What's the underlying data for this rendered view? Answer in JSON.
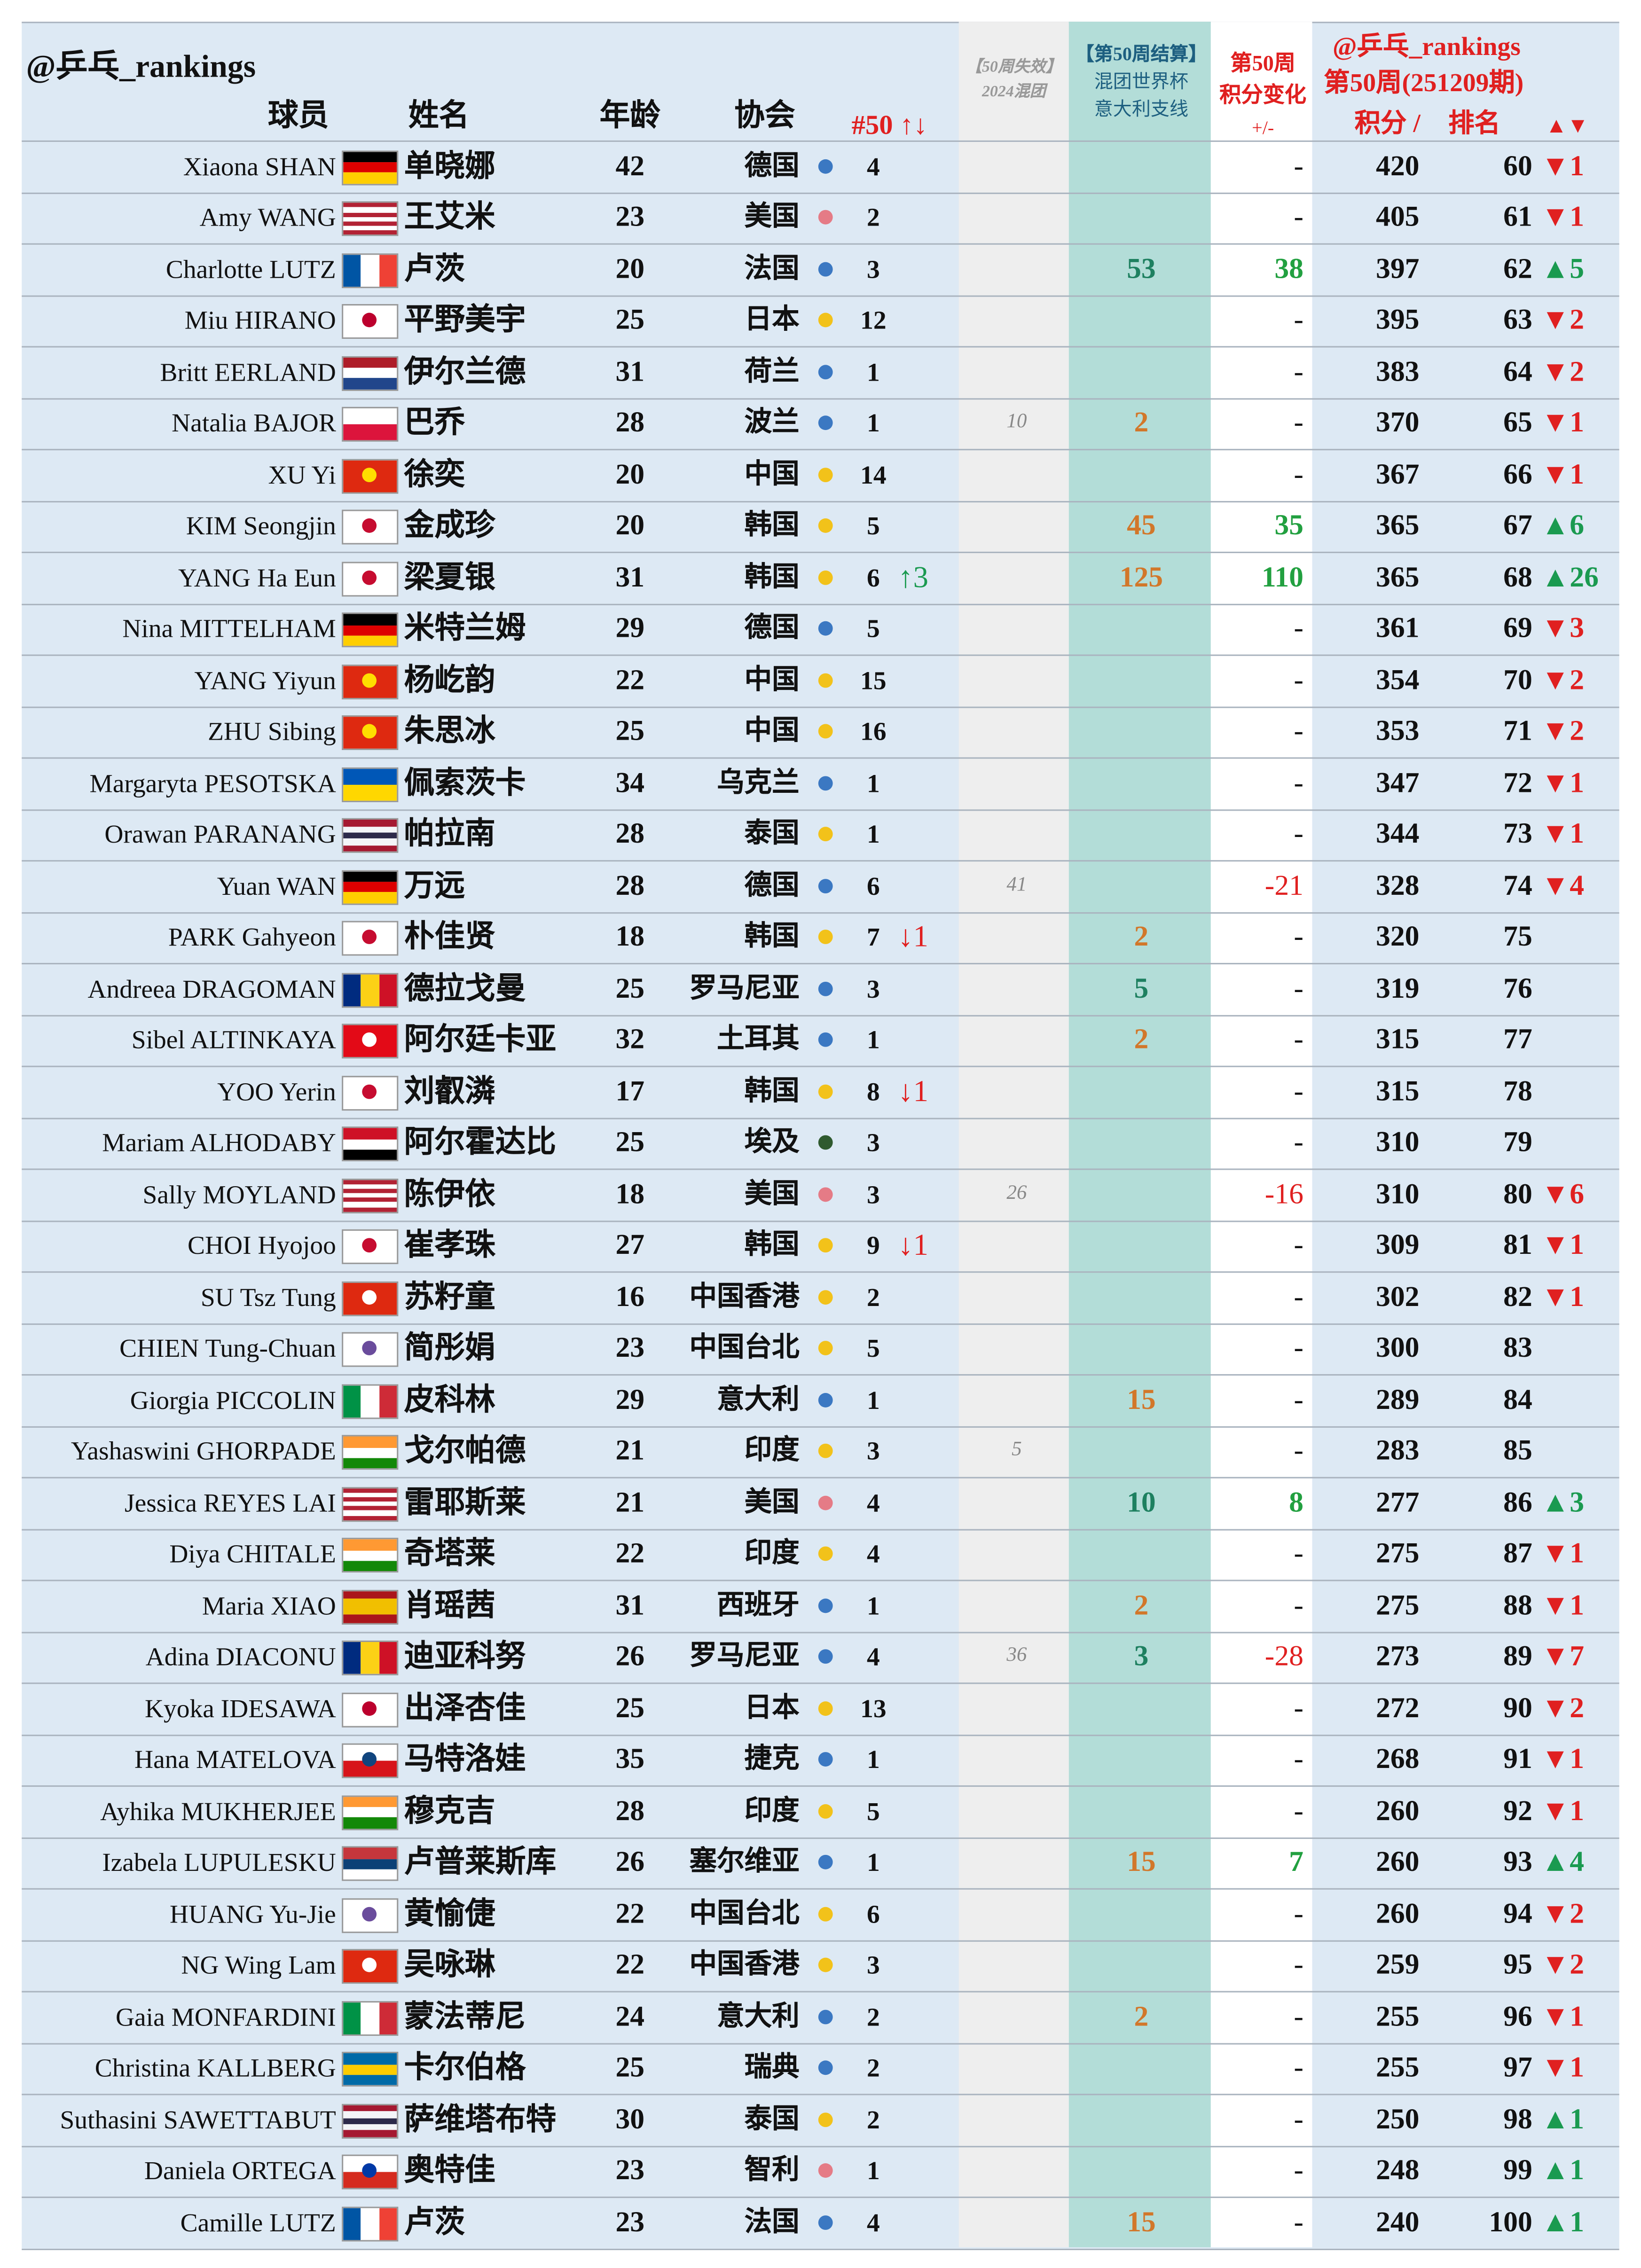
{
  "header": {
    "handle": "@乒乓_rankings",
    "col_player": "球员",
    "col_name": "姓名",
    "col_age": "年龄",
    "col_assoc": "协会",
    "col_n50": "#50 ↑↓",
    "expired_1": "【50周失效】",
    "expired_2": "2024混团",
    "settle_1": "【第50周结算】",
    "settle_2": "混团世界杯",
    "settle_3": "意大利支线",
    "change_1": "第50周",
    "change_2": "积分变化",
    "change_3": "+/-",
    "right_1": "@乒乓_rankings",
    "right_2": "第50周(251209期)",
    "col_points": "积分 /",
    "col_rank": "排名",
    "col_rank_change": "▲▼"
  },
  "rows": [
    {
      "en": "Xiaona SHAN",
      "cn": "单晓娜",
      "age": 42,
      "assoc": "德国",
      "dot": "#3b78c2",
      "n50": 4,
      "change": "-",
      "points": 420,
      "rank": 60,
      "rank_change": "▼1",
      "rank_change_color": "#e02020",
      "flag": {
        "dir": "h",
        "colors": [
          "#000000",
          "#dd0000",
          "#ffce00"
        ]
      }
    },
    {
      "en": "Amy WANG",
      "cn": "王艾米",
      "age": 23,
      "assoc": "美国",
      "dot": "#e57b86",
      "n50": 2,
      "change": "-",
      "points": 405,
      "rank": 61,
      "rank_change": "▼1",
      "rank_change_color": "#e02020",
      "flag": {
        "dir": "h",
        "colors": [
          "#b22234",
          "#ffffff",
          "#b22234",
          "#ffffff",
          "#b22234",
          "#ffffff",
          "#b22234"
        ]
      }
    },
    {
      "en": "Charlotte LUTZ",
      "cn": "卢茨",
      "age": 20,
      "assoc": "法国",
      "dot": "#3b78c2",
      "n50": 3,
      "settle": 53,
      "settle_color": "#1e8060",
      "change": 38,
      "points": 397,
      "rank": 62,
      "rank_change": "▲5",
      "rank_change_color": "#1a9a50",
      "flag": {
        "dir": "v",
        "colors": [
          "#0055a4",
          "#ffffff",
          "#ef4135"
        ]
      }
    },
    {
      "en": "Miu HIRANO",
      "cn": "平野美宇",
      "age": 25,
      "assoc": "日本",
      "dot": "#f2c21a",
      "n50": 12,
      "change": "-",
      "points": 395,
      "rank": 63,
      "rank_change": "▼2",
      "rank_change_color": "#e02020",
      "flag": {
        "dir": "h",
        "colors": [
          "#ffffff"
        ],
        "circle": "#bc002d"
      }
    },
    {
      "en": "Britt EERLAND",
      "cn": "伊尔兰德",
      "age": 31,
      "assoc": "荷兰",
      "dot": "#3b78c2",
      "n50": 1,
      "change": "-",
      "points": 383,
      "rank": 64,
      "rank_change": "▼2",
      "rank_change_color": "#e02020",
      "flag": {
        "dir": "h",
        "colors": [
          "#ae1c28",
          "#ffffff",
          "#21468b"
        ]
      }
    },
    {
      "en": "Natalia BAJOR",
      "cn": "巴乔",
      "age": 28,
      "assoc": "波兰",
      "dot": "#3b78c2",
      "n50": 1,
      "expired": 10,
      "settle": 2,
      "settle_color": "#d2772a",
      "change": "-",
      "points": 370,
      "rank": 65,
      "rank_change": "▼1",
      "rank_change_color": "#e02020",
      "flag": {
        "dir": "h",
        "colors": [
          "#ffffff",
          "#dc143c"
        ]
      }
    },
    {
      "en": "XU Yi",
      "cn": "徐奕",
      "age": 20,
      "assoc": "中国",
      "dot": "#f2c21a",
      "n50": 14,
      "change": "-",
      "points": 367,
      "rank": 66,
      "rank_change": "▼1",
      "rank_change_color": "#e02020",
      "flag": {
        "dir": "h",
        "colors": [
          "#de2910"
        ],
        "circle": "#ffde00"
      }
    },
    {
      "en": "KIM Seongjin",
      "cn": "金成珍",
      "age": 20,
      "assoc": "韩国",
      "dot": "#f2c21a",
      "n50": 5,
      "settle": 45,
      "settle_color": "#d2772a",
      "change": 35,
      "points": 365,
      "rank": 67,
      "rank_change": "▲6",
      "rank_change_color": "#1a9a50",
      "flag": {
        "dir": "h",
        "colors": [
          "#ffffff"
        ],
        "circle": "#c60c30"
      }
    },
    {
      "en": "YANG Ha Eun",
      "cn": "梁夏银",
      "age": 31,
      "assoc": "韩国",
      "dot": "#f2c21a",
      "n50": 6,
      "trend": "↑3",
      "trend_color": "#1a9a50",
      "settle": 125,
      "settle_color": "#d2772a",
      "change": 110,
      "points": 365,
      "rank": 68,
      "rank_change": "▲26",
      "rank_change_color": "#1a9a50",
      "flag": {
        "dir": "h",
        "colors": [
          "#ffffff"
        ],
        "circle": "#c60c30"
      }
    },
    {
      "en": "Nina MITTELHAM",
      "cn": "米特兰姆",
      "age": 29,
      "assoc": "德国",
      "dot": "#3b78c2",
      "n50": 5,
      "change": "-",
      "points": 361,
      "rank": 69,
      "rank_change": "▼3",
      "rank_change_color": "#e02020",
      "flag": {
        "dir": "h",
        "colors": [
          "#000000",
          "#dd0000",
          "#ffce00"
        ]
      }
    },
    {
      "en": "YANG Yiyun",
      "cn": "杨屹韵",
      "age": 22,
      "assoc": "中国",
      "dot": "#f2c21a",
      "n50": 15,
      "change": "-",
      "points": 354,
      "rank": 70,
      "rank_change": "▼2",
      "rank_change_color": "#e02020",
      "flag": {
        "dir": "h",
        "colors": [
          "#de2910"
        ],
        "circle": "#ffde00"
      }
    },
    {
      "en": "ZHU Sibing",
      "cn": "朱思冰",
      "age": 25,
      "assoc": "中国",
      "dot": "#f2c21a",
      "n50": 16,
      "change": "-",
      "points": 353,
      "rank": 71,
      "rank_change": "▼2",
      "rank_change_color": "#e02020",
      "flag": {
        "dir": "h",
        "colors": [
          "#de2910"
        ],
        "circle": "#ffde00"
      }
    },
    {
      "en": "Margaryta PESOTSKA",
      "cn": "佩索茨卡",
      "age": 34,
      "assoc": "乌克兰",
      "dot": "#3b78c2",
      "n50": 1,
      "change": "-",
      "points": 347,
      "rank": 72,
      "rank_change": "▼1",
      "rank_change_color": "#e02020",
      "flag": {
        "dir": "h",
        "colors": [
          "#0057b7",
          "#ffd700"
        ]
      }
    },
    {
      "en": "Orawan PARANANG",
      "cn": "帕拉南",
      "age": 28,
      "assoc": "泰国",
      "dot": "#f2c21a",
      "n50": 1,
      "change": "-",
      "points": 344,
      "rank": 73,
      "rank_change": "▼1",
      "rank_change_color": "#e02020",
      "flag": {
        "dir": "h",
        "colors": [
          "#a51931",
          "#f4f5f8",
          "#2d2a4a",
          "#f4f5f8",
          "#a51931"
        ]
      }
    },
    {
      "en": "Yuan WAN",
      "cn": "万远",
      "age": 28,
      "assoc": "德国",
      "dot": "#3b78c2",
      "n50": 6,
      "expired": 41,
      "change": -21,
      "points": 328,
      "rank": 74,
      "rank_change": "▼4",
      "rank_change_color": "#e02020",
      "flag": {
        "dir": "h",
        "colors": [
          "#000000",
          "#dd0000",
          "#ffce00"
        ]
      }
    },
    {
      "en": "PARK Gahyeon",
      "cn": "朴佳贤",
      "age": 18,
      "assoc": "韩国",
      "dot": "#f2c21a",
      "n50": 7,
      "trend": "↓1",
      "trend_color": "#e02020",
      "settle": 2,
      "settle_color": "#d2772a",
      "change": "-",
      "points": 320,
      "rank": 75,
      "flag": {
        "dir": "h",
        "colors": [
          "#ffffff"
        ],
        "circle": "#c60c30"
      }
    },
    {
      "en": "Andreea DRAGOMAN",
      "cn": "德拉戈曼",
      "age": 25,
      "assoc": "罗马尼亚",
      "dot": "#3b78c2",
      "n50": 3,
      "settle": 5,
      "settle_color": "#1e8060",
      "change": "-",
      "points": 319,
      "rank": 76,
      "flag": {
        "dir": "v",
        "colors": [
          "#002b7f",
          "#fcd116",
          "#ce1126"
        ]
      }
    },
    {
      "en": "Sibel ALTINKAYA",
      "cn": "阿尔廷卡亚",
      "age": 32,
      "assoc": "土耳其",
      "dot": "#3b78c2",
      "n50": 1,
      "settle": 2,
      "settle_color": "#d2772a",
      "change": "-",
      "points": 315,
      "rank": 77,
      "flag": {
        "dir": "h",
        "colors": [
          "#e30a17"
        ],
        "circle": "#ffffff"
      }
    },
    {
      "en": "YOO Yerin",
      "cn": "刘叡潾",
      "age": 17,
      "assoc": "韩国",
      "dot": "#f2c21a",
      "n50": 8,
      "trend": "↓1",
      "trend_color": "#e02020",
      "change": "-",
      "points": 315,
      "rank": 78,
      "flag": {
        "dir": "h",
        "colors": [
          "#ffffff"
        ],
        "circle": "#c60c30"
      }
    },
    {
      "en": "Mariam ALHODABY",
      "cn": "阿尔霍达比",
      "age": 25,
      "assoc": "埃及",
      "dot": "#2f5a2f",
      "n50": 3,
      "change": "-",
      "points": 310,
      "rank": 79,
      "flag": {
        "dir": "h",
        "colors": [
          "#ce1126",
          "#ffffff",
          "#000000"
        ]
      }
    },
    {
      "en": "Sally MOYLAND",
      "cn": "陈伊依",
      "age": 18,
      "assoc": "美国",
      "dot": "#e57b86",
      "n50": 3,
      "expired": 26,
      "change": -16,
      "points": 310,
      "rank": 80,
      "rank_change": "▼6",
      "rank_change_color": "#e02020",
      "flag": {
        "dir": "h",
        "colors": [
          "#b22234",
          "#ffffff",
          "#b22234",
          "#ffffff",
          "#b22234",
          "#ffffff",
          "#b22234"
        ]
      }
    },
    {
      "en": "CHOI Hyojoo",
      "cn": "崔孝珠",
      "age": 27,
      "assoc": "韩国",
      "dot": "#f2c21a",
      "n50": 9,
      "trend": "↓1",
      "trend_color": "#e02020",
      "change": "-",
      "points": 309,
      "rank": 81,
      "rank_change": "▼1",
      "rank_change_color": "#e02020",
      "flag": {
        "dir": "h",
        "colors": [
          "#ffffff"
        ],
        "circle": "#c60c30"
      }
    },
    {
      "en": "SU Tsz Tung",
      "cn": "苏籽童",
      "age": 16,
      "assoc": "中国香港",
      "dot": "#f2c21a",
      "n50": 2,
      "change": "-",
      "points": 302,
      "rank": 82,
      "rank_change": "▼1",
      "rank_change_color": "#e02020",
      "flag": {
        "dir": "h",
        "colors": [
          "#de2910"
        ],
        "circle": "#ffffff"
      }
    },
    {
      "en": "CHIEN Tung-Chuan",
      "cn": "简彤娟",
      "age": 23,
      "assoc": "中国台北",
      "dot": "#f2c21a",
      "n50": 5,
      "change": "-",
      "points": 300,
      "rank": 83,
      "flag": {
        "dir": "h",
        "colors": [
          "#ffffff"
        ],
        "circle": "#6a4c9c"
      }
    },
    {
      "en": "Giorgia PICCOLIN",
      "cn": "皮科林",
      "age": 29,
      "assoc": "意大利",
      "dot": "#3b78c2",
      "n50": 1,
      "settle": 15,
      "settle_color": "#d2772a",
      "change": "-",
      "points": 289,
      "rank": 84,
      "flag": {
        "dir": "v",
        "colors": [
          "#009246",
          "#ffffff",
          "#ce2b37"
        ]
      }
    },
    {
      "en": "Yashaswini GHORPADE",
      "cn": "戈尔帕德",
      "age": 21,
      "assoc": "印度",
      "dot": "#f2c21a",
      "n50": 3,
      "expired": 5,
      "change": "-",
      "points": 283,
      "rank": 85,
      "flag": {
        "dir": "h",
        "colors": [
          "#ff9933",
          "#ffffff",
          "#138808"
        ]
      }
    },
    {
      "en": "Jessica REYES LAI",
      "cn": "雷耶斯莱",
      "age": 21,
      "assoc": "美国",
      "dot": "#e57b86",
      "n50": 4,
      "settle": 10,
      "settle_color": "#1e8060",
      "change": 8,
      "points": 277,
      "rank": 86,
      "rank_change": "▲3",
      "rank_change_color": "#1a9a50",
      "flag": {
        "dir": "h",
        "colors": [
          "#b22234",
          "#ffffff",
          "#b22234",
          "#ffffff",
          "#b22234",
          "#ffffff",
          "#b22234"
        ]
      }
    },
    {
      "en": "Diya CHITALE",
      "cn": "奇塔莱",
      "age": 22,
      "assoc": "印度",
      "dot": "#f2c21a",
      "n50": 4,
      "change": "-",
      "points": 275,
      "rank": 87,
      "rank_change": "▼1",
      "rank_change_color": "#e02020",
      "flag": {
        "dir": "h",
        "colors": [
          "#ff9933",
          "#ffffff",
          "#138808"
        ]
      }
    },
    {
      "en": "Maria XIAO",
      "cn": "肖瑶茜",
      "age": 31,
      "assoc": "西班牙",
      "dot": "#3b78c2",
      "n50": 1,
      "settle": 2,
      "settle_color": "#d2772a",
      "change": "-",
      "points": 275,
      "rank": 88,
      "rank_change": "▼1",
      "rank_change_color": "#e02020",
      "flag": {
        "dir": "h",
        "colors": [
          "#aa151b",
          "#f1bf00",
          "#f1bf00",
          "#aa151b"
        ]
      }
    },
    {
      "en": "Adina DIACONU",
      "cn": "迪亚科努",
      "age": 26,
      "assoc": "罗马尼亚",
      "dot": "#3b78c2",
      "n50": 4,
      "expired": 36,
      "settle": 3,
      "settle_color": "#1e8060",
      "change": -28,
      "points": 273,
      "rank": 89,
      "rank_change": "▼7",
      "rank_change_color": "#e02020",
      "flag": {
        "dir": "v",
        "colors": [
          "#002b7f",
          "#fcd116",
          "#ce1126"
        ]
      }
    },
    {
      "en": "Kyoka IDESAWA",
      "cn": "出泽杏佳",
      "age": 25,
      "assoc": "日本",
      "dot": "#f2c21a",
      "n50": 13,
      "change": "-",
      "points": 272,
      "rank": 90,
      "rank_change": "▼2",
      "rank_change_color": "#e02020",
      "flag": {
        "dir": "h",
        "colors": [
          "#ffffff"
        ],
        "circle": "#bc002d"
      }
    },
    {
      "en": "Hana MATELOVA",
      "cn": "马特洛娃",
      "age": 35,
      "assoc": "捷克",
      "dot": "#3b78c2",
      "n50": 1,
      "change": "-",
      "points": 268,
      "rank": 91,
      "rank_change": "▼1",
      "rank_change_color": "#e02020",
      "flag": {
        "dir": "h",
        "colors": [
          "#ffffff",
          "#d7141a"
        ],
        "circle": "#11457e"
      }
    },
    {
      "en": "Ayhika MUKHERJEE",
      "cn": "穆克吉",
      "age": 28,
      "assoc": "印度",
      "dot": "#f2c21a",
      "n50": 5,
      "change": "-",
      "points": 260,
      "rank": 92,
      "rank_change": "▼1",
      "rank_change_color": "#e02020",
      "flag": {
        "dir": "h",
        "colors": [
          "#ff9933",
          "#ffffff",
          "#138808"
        ]
      }
    },
    {
      "en": "Izabela LUPULESKU",
      "cn": "卢普莱斯库",
      "age": 26,
      "assoc": "塞尔维亚",
      "dot": "#3b78c2",
      "n50": 1,
      "settle": 15,
      "settle_color": "#d2772a",
      "change": 7,
      "points": 260,
      "rank": 93,
      "rank_change": "▲4",
      "rank_change_color": "#1a9a50",
      "flag": {
        "dir": "h",
        "colors": [
          "#c6363c",
          "#0c4076",
          "#ffffff"
        ]
      }
    },
    {
      "en": "HUANG Yu-Jie",
      "cn": "黄愉倢",
      "age": 22,
      "assoc": "中国台北",
      "dot": "#f2c21a",
      "n50": 6,
      "change": "-",
      "points": 260,
      "rank": 94,
      "rank_change": "▼2",
      "rank_change_color": "#e02020",
      "flag": {
        "dir": "h",
        "colors": [
          "#ffffff"
        ],
        "circle": "#6a4c9c"
      }
    },
    {
      "en": "NG Wing Lam",
      "cn": "吴咏琳",
      "age": 22,
      "assoc": "中国香港",
      "dot": "#f2c21a",
      "n50": 3,
      "change": "-",
      "points": 259,
      "rank": 95,
      "rank_change": "▼2",
      "rank_change_color": "#e02020",
      "flag": {
        "dir": "h",
        "colors": [
          "#de2910"
        ],
        "circle": "#ffffff"
      }
    },
    {
      "en": "Gaia MONFARDINI",
      "cn": "蒙法蒂尼",
      "age": 24,
      "assoc": "意大利",
      "dot": "#3b78c2",
      "n50": 2,
      "settle": 2,
      "settle_color": "#d2772a",
      "change": "-",
      "points": 255,
      "rank": 96,
      "rank_change": "▼1",
      "rank_change_color": "#e02020",
      "flag": {
        "dir": "v",
        "colors": [
          "#009246",
          "#ffffff",
          "#ce2b37"
        ]
      }
    },
    {
      "en": "Christina KALLBERG",
      "cn": "卡尔伯格",
      "age": 25,
      "assoc": "瑞典",
      "dot": "#3b78c2",
      "n50": 2,
      "change": "-",
      "points": 255,
      "rank": 97,
      "rank_change": "▼1",
      "rank_change_color": "#e02020",
      "flag": {
        "dir": "h",
        "colors": [
          "#006aa7",
          "#fecc00",
          "#006aa7"
        ]
      }
    },
    {
      "en": "Suthasini SAWETTABUT",
      "cn": "萨维塔布特",
      "age": 30,
      "assoc": "泰国",
      "dot": "#f2c21a",
      "n50": 2,
      "change": "-",
      "points": 250,
      "rank": 98,
      "rank_change": "▲1",
      "rank_change_color": "#1a9a50",
      "flag": {
        "dir": "h",
        "colors": [
          "#a51931",
          "#f4f5f8",
          "#2d2a4a",
          "#f4f5f8",
          "#a51931"
        ]
      }
    },
    {
      "en": "Daniela ORTEGA",
      "cn": "奥特佳",
      "age": 23,
      "assoc": "智利",
      "dot": "#e57b86",
      "n50": 1,
      "change": "-",
      "points": 248,
      "rank": 99,
      "rank_change": "▲1",
      "rank_change_color": "#1a9a50",
      "flag": {
        "dir": "h",
        "colors": [
          "#ffffff",
          "#d52b1e"
        ],
        "circle": "#0039a6"
      }
    },
    {
      "en": "Camille LUTZ",
      "cn": "卢茨",
      "age": 23,
      "assoc": "法国",
      "dot": "#3b78c2",
      "n50": 4,
      "settle": 15,
      "settle_color": "#d2772a",
      "change": "-",
      "points": 240,
      "rank": 100,
      "rank_change": "▲1",
      "rank_change_color": "#1a9a50",
      "flag": {
        "dir": "v",
        "colors": [
          "#0055a4",
          "#ffffff",
          "#ef4135"
        ]
      }
    }
  ]
}
